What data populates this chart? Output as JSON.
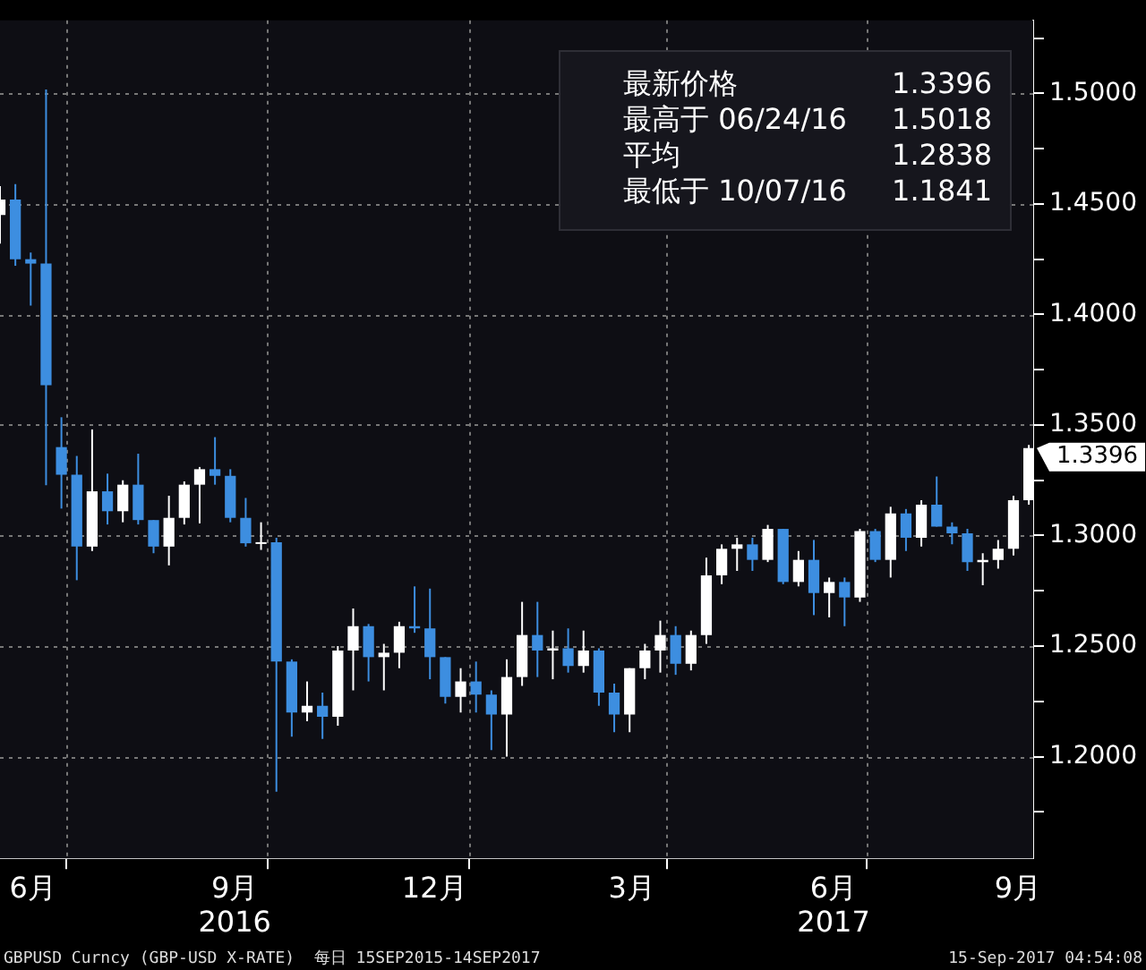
{
  "chart_data": {
    "type": "candlestick",
    "x": [
      "2016-06-01",
      "2016-06-08",
      "2016-06-15",
      "2016-06-22",
      "2016-06-29",
      "2016-07-06",
      "2016-07-13",
      "2016-07-20",
      "2016-07-27",
      "2016-08-03",
      "2016-08-10",
      "2016-08-17",
      "2016-08-24",
      "2016-08-31",
      "2016-09-07",
      "2016-09-14",
      "2016-09-21",
      "2016-09-28",
      "2016-10-05",
      "2016-10-12",
      "2016-10-19",
      "2016-10-26",
      "2016-11-02",
      "2016-11-09",
      "2016-11-16",
      "2016-11-23",
      "2016-11-30",
      "2016-12-07",
      "2016-12-14",
      "2016-12-21",
      "2016-12-28",
      "2017-01-04",
      "2017-01-11",
      "2017-01-18",
      "2017-01-25",
      "2017-02-01",
      "2017-02-08",
      "2017-02-15",
      "2017-02-22",
      "2017-03-01",
      "2017-03-08",
      "2017-03-15",
      "2017-03-22",
      "2017-03-29",
      "2017-04-05",
      "2017-04-12",
      "2017-04-19",
      "2017-04-26",
      "2017-05-03",
      "2017-05-10",
      "2017-05-17",
      "2017-05-24",
      "2017-05-31",
      "2017-06-07",
      "2017-06-14",
      "2017-06-21",
      "2017-06-28",
      "2017-07-05",
      "2017-07-12",
      "2017-07-19",
      "2017-07-26",
      "2017-08-02",
      "2017-08-09",
      "2017-08-16",
      "2017-08-23",
      "2017-08-30",
      "2017-09-06",
      "2017-09-13"
    ],
    "ohlc": [
      [
        1.445,
        1.458,
        1.432,
        1.452
      ],
      [
        1.452,
        1.459,
        1.422,
        1.425
      ],
      [
        1.425,
        1.428,
        1.404,
        1.423
      ],
      [
        1.423,
        1.5018,
        1.3228,
        1.368
      ],
      [
        1.34,
        1.3535,
        1.3122,
        1.3275
      ],
      [
        1.3275,
        1.336,
        1.2798,
        1.295
      ],
      [
        1.295,
        1.348,
        1.293,
        1.32
      ],
      [
        1.32,
        1.328,
        1.305,
        1.311
      ],
      [
        1.311,
        1.325,
        1.306,
        1.323
      ],
      [
        1.323,
        1.337,
        1.305,
        1.307
      ],
      [
        1.307,
        1.307,
        1.292,
        1.295
      ],
      [
        1.295,
        1.318,
        1.2865,
        1.308
      ],
      [
        1.308,
        1.3245,
        1.305,
        1.323
      ],
      [
        1.323,
        1.331,
        1.3055,
        1.33
      ],
      [
        1.33,
        1.3445,
        1.323,
        1.327
      ],
      [
        1.327,
        1.33,
        1.306,
        1.308
      ],
      [
        1.308,
        1.317,
        1.295,
        1.2965
      ],
      [
        1.2965,
        1.306,
        1.2935,
        1.297
      ],
      [
        1.297,
        1.299,
        1.1841,
        1.243
      ],
      [
        1.243,
        1.244,
        1.209,
        1.22
      ],
      [
        1.22,
        1.234,
        1.216,
        1.223
      ],
      [
        1.223,
        1.229,
        1.208,
        1.218
      ],
      [
        1.218,
        1.25,
        1.214,
        1.248
      ],
      [
        1.248,
        1.267,
        1.23,
        1.259
      ],
      [
        1.259,
        1.26,
        1.234,
        1.245
      ],
      [
        1.245,
        1.251,
        1.23,
        1.247
      ],
      [
        1.247,
        1.261,
        1.24,
        1.259
      ],
      [
        1.259,
        1.277,
        1.256,
        1.258
      ],
      [
        1.258,
        1.276,
        1.235,
        1.245
      ],
      [
        1.245,
        1.245,
        1.224,
        1.227
      ],
      [
        1.227,
        1.24,
        1.22,
        1.234
      ],
      [
        1.234,
        1.243,
        1.22,
        1.228
      ],
      [
        1.228,
        1.23,
        1.203,
        1.219
      ],
      [
        1.219,
        1.244,
        1.2,
        1.236
      ],
      [
        1.236,
        1.27,
        1.232,
        1.255
      ],
      [
        1.255,
        1.27,
        1.236,
        1.248
      ],
      [
        1.248,
        1.257,
        1.235,
        1.249
      ],
      [
        1.249,
        1.258,
        1.238,
        1.241
      ],
      [
        1.241,
        1.257,
        1.238,
        1.248
      ],
      [
        1.248,
        1.249,
        1.223,
        1.229
      ],
      [
        1.229,
        1.233,
        1.211,
        1.219
      ],
      [
        1.219,
        1.24,
        1.211,
        1.24
      ],
      [
        1.24,
        1.251,
        1.235,
        1.248
      ],
      [
        1.248,
        1.2615,
        1.238,
        1.255
      ],
      [
        1.255,
        1.259,
        1.237,
        1.242
      ],
      [
        1.242,
        1.257,
        1.239,
        1.255
      ],
      [
        1.255,
        1.29,
        1.251,
        1.282
      ],
      [
        1.282,
        1.296,
        1.278,
        1.294
      ],
      [
        1.294,
        1.299,
        1.284,
        1.296
      ],
      [
        1.296,
        1.299,
        1.284,
        1.289
      ],
      [
        1.289,
        1.3048,
        1.288,
        1.303
      ],
      [
        1.303,
        1.303,
        1.278,
        1.279
      ],
      [
        1.279,
        1.293,
        1.277,
        1.289
      ],
      [
        1.289,
        1.298,
        1.264,
        1.274
      ],
      [
        1.274,
        1.281,
        1.263,
        1.279
      ],
      [
        1.279,
        1.281,
        1.259,
        1.272
      ],
      [
        1.272,
        1.303,
        1.27,
        1.302
      ],
      [
        1.302,
        1.303,
        1.288,
        1.289
      ],
      [
        1.289,
        1.313,
        1.281,
        1.31
      ],
      [
        1.31,
        1.312,
        1.293,
        1.299
      ],
      [
        1.299,
        1.316,
        1.295,
        1.314
      ],
      [
        1.314,
        1.3267,
        1.304,
        1.304
      ],
      [
        1.304,
        1.306,
        1.296,
        1.301
      ],
      [
        1.301,
        1.303,
        1.284,
        1.288
      ],
      [
        1.288,
        1.292,
        1.2775,
        1.289
      ],
      [
        1.289,
        1.298,
        1.285,
        1.294
      ],
      [
        1.294,
        1.318,
        1.291,
        1.316
      ],
      [
        1.316,
        1.341,
        1.314,
        1.3396
      ]
    ],
    "colors": [
      "#ffffff",
      "#3d8ee0",
      "#3d8ee0",
      "#3d8ee0",
      "#3d8ee0",
      "#3d8ee0",
      "#ffffff",
      "#3d8ee0",
      "#ffffff",
      "#3d8ee0",
      "#3d8ee0",
      "#ffffff",
      "#ffffff",
      "#ffffff",
      "#3d8ee0",
      "#3d8ee0",
      "#3d8ee0",
      "#ffffff",
      "#3d8ee0",
      "#3d8ee0",
      "#ffffff",
      "#3d8ee0",
      "#ffffff",
      "#ffffff",
      "#3d8ee0",
      "#ffffff",
      "#ffffff",
      "#3d8ee0",
      "#3d8ee0",
      "#3d8ee0",
      "#ffffff",
      "#3d8ee0",
      "#3d8ee0",
      "#ffffff",
      "#ffffff",
      "#3d8ee0",
      "#ffffff",
      "#3d8ee0",
      "#ffffff",
      "#3d8ee0",
      "#3d8ee0",
      "#ffffff",
      "#ffffff",
      "#ffffff",
      "#3d8ee0",
      "#ffffff",
      "#ffffff",
      "#ffffff",
      "#ffffff",
      "#3d8ee0",
      "#ffffff",
      "#3d8ee0",
      "#ffffff",
      "#3d8ee0",
      "#ffffff",
      "#3d8ee0",
      "#ffffff",
      "#3d8ee0",
      "#ffffff",
      "#3d8ee0",
      "#ffffff",
      "#3d8ee0",
      "#3d8ee0",
      "#3d8ee0",
      "#ffffff",
      "#ffffff",
      "#ffffff",
      "#ffffff"
    ],
    "xlim": [
      "2016-06-01",
      "2017-09-15"
    ],
    "xticks": [
      {
        "value": "2016-06-16",
        "label": "6月"
      },
      {
        "value": "2016-07-01",
        "label": null
      },
      {
        "value": "2016-09-16",
        "label": "9月\n2016"
      },
      {
        "value": "2016-10-01",
        "label": null
      },
      {
        "value": "2016-12-16",
        "label": "12月"
      },
      {
        "value": "2017-01-01",
        "label": null
      },
      {
        "value": "2017-03-16",
        "label": "3月"
      },
      {
        "value": "2017-04-01",
        "label": null
      },
      {
        "value": "2017-06-16",
        "label": "6月\n2017"
      },
      {
        "value": "2017-07-01",
        "label": null
      },
      {
        "value": "2017-09-08",
        "label": "9月"
      }
    ],
    "ylim": [
      1.154,
      1.533
    ],
    "yticks": [
      {
        "value": 1.175,
        "label": null
      },
      {
        "value": 1.2,
        "label": "1.2000"
      },
      {
        "value": 1.225,
        "label": null
      },
      {
        "value": 1.25,
        "label": "1.2500"
      },
      {
        "value": 1.275,
        "label": null
      },
      {
        "value": 1.3,
        "label": "1.3000"
      },
      {
        "value": 1.325,
        "label": null
      },
      {
        "value": 1.35,
        "label": "1.3500"
      },
      {
        "value": 1.375,
        "label": null
      },
      {
        "value": 1.4,
        "label": "1.4000"
      },
      {
        "value": 1.425,
        "label": null
      },
      {
        "value": 1.45,
        "label": "1.4500"
      },
      {
        "value": 1.475,
        "label": null
      },
      {
        "value": 1.5,
        "label": "1.5000"
      },
      {
        "value": 1.525,
        "label": null
      }
    ],
    "grid": true,
    "annotations": [
      "最新价格 1.3396",
      "最高于 06/24/16 1.5018",
      "平均 1.2838",
      "最低于 10/07/16 1.1841",
      {
        "text": "1.3396",
        "x": "2017-09-15",
        "y": 1.3396
      },
      "GBPUSD Curncy (GBP-USD X-RATE)  每日 15SEP2015-14SEP2017",
      "15-Sep-2017 04:54:08"
    ]
  }
}
